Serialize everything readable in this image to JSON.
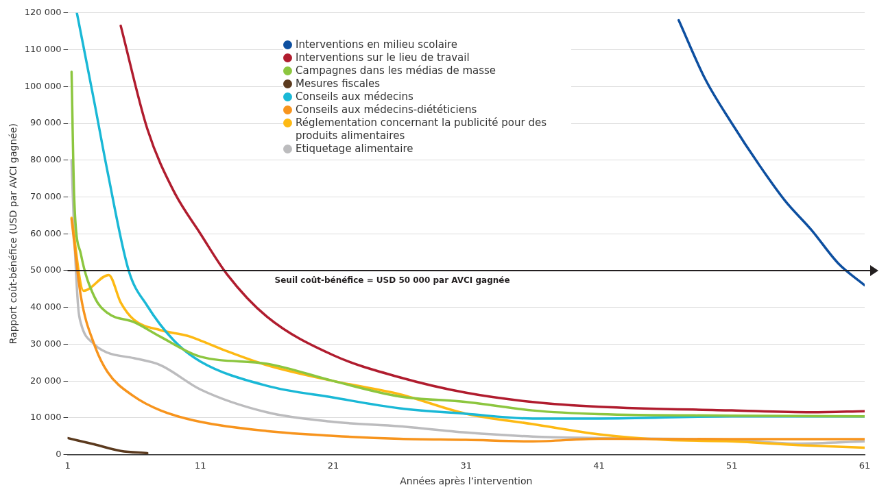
{
  "chart_data": {
    "type": "line",
    "xlabel": "Années après l’intervention",
    "ylabel": "Rapport coût-bénéfice (USD par AVCI gagnée)",
    "xlim": [
      1,
      61
    ],
    "xticks": [
      1,
      11,
      21,
      31,
      41,
      51,
      61
    ],
    "ylim": [
      0,
      120000
    ],
    "yticks": [
      0,
      {
        "value": 10000,
        "label": "10 000"
      },
      {
        "value": 20000,
        "label": "20 000"
      },
      {
        "value": 30000,
        "label": "30 000"
      },
      {
        "value": 40000,
        "label": "40 000"
      },
      {
        "value": 50000,
        "label": "50 000"
      },
      {
        "value": 60000,
        "label": "60 000"
      },
      {
        "value": 70000,
        "label": "70 000"
      },
      {
        "value": 80000,
        "label": "80 000"
      },
      {
        "value": 90000,
        "label": "90 000"
      },
      {
        "value": 100000,
        "label": "100 000"
      },
      {
        "value": 110000,
        "label": "110 000"
      },
      {
        "value": 120000,
        "label": "120 000"
      }
    ],
    "grid": "y",
    "legend": "top",
    "marker": "none",
    "line_style": "solid",
    "ref_lines": [
      {
        "axis": "y",
        "value": 50000,
        "label": "Seuil coût-bénéfice = USD 50 000 par AVCI gagnée",
        "color": "#231f20"
      }
    ],
    "series": [
      {
        "name": "Interventions en milieu scolaire",
        "color": "#0d4fa0",
        "x": [
          47,
          49,
          51,
          53,
          55,
          57,
          59,
          61
        ],
        "values": [
          118000,
          102000,
          90000,
          79000,
          69000,
          61000,
          52000,
          46000
        ]
      },
      {
        "name": "Interventions sur le lieu de travail",
        "color": "#b01c2e",
        "x": [
          5,
          7,
          9,
          11,
          13,
          16,
          21,
          26,
          31,
          36,
          41,
          51,
          57,
          61
        ],
        "values": [
          116500,
          88500,
          71500,
          60000,
          49000,
          37500,
          27000,
          21000,
          16800,
          14300,
          13000,
          12000,
          11500,
          11800
        ]
      },
      {
        "name": "Campagnes dans les médias de masse",
        "color": "#8cc63f",
        "x": [
          1.3,
          1.5,
          2,
          3,
          4,
          6,
          8,
          11,
          16,
          21,
          26,
          31,
          36,
          41,
          51,
          61
        ],
        "values": [
          104000,
          69600,
          54500,
          43000,
          38500,
          36000,
          32000,
          26600,
          24700,
          20000,
          15800,
          14300,
          12000,
          11000,
          10600,
          10400
        ]
      },
      {
        "name": "Mesures fiscales",
        "color": "#5b3a1e",
        "x": [
          1,
          3,
          5,
          7
        ],
        "values": [
          4500,
          2800,
          1000,
          400
        ]
      },
      {
        "name": "Conseils aux médecins",
        "color": "#1ab8d6",
        "x": [
          1.7,
          3,
          4,
          5.6,
          7,
          9,
          11,
          16,
          21,
          26,
          31,
          36,
          41,
          51,
          61
        ],
        "values": [
          120000,
          96000,
          77000,
          50000,
          40400,
          31000,
          25300,
          18700,
          15500,
          12600,
          11100,
          9800,
          9800,
          10400,
          10400
        ]
      },
      {
        "name": "Conseils aux médecins-diététiciens",
        "color": "#f7941d",
        "x": [
          1.3,
          2,
          3,
          4,
          6,
          8,
          11,
          16,
          21,
          26,
          31,
          36,
          41,
          51,
          61
        ],
        "values": [
          64000,
          43000,
          30000,
          22500,
          15800,
          12000,
          8900,
          6400,
          5100,
          4300,
          4000,
          3600,
          4300,
          4200,
          4200
        ]
      },
      {
        "name": "Réglementation concernant la publicité pour des produits alimentaires",
        "color": "#fdb913",
        "x": [
          1.3,
          2.2,
          4.1,
          5,
          6,
          8,
          10,
          11,
          13,
          16,
          21,
          26,
          31,
          36,
          41,
          46,
          51,
          56,
          61
        ],
        "values": [
          64300,
          44500,
          48800,
          41300,
          36600,
          33800,
          32300,
          31000,
          28100,
          24300,
          20000,
          16400,
          11100,
          8300,
          5500,
          4000,
          3600,
          2600,
          1900
        ]
      },
      {
        "name": "Etiquetage alimentaire",
        "color": "#bcbcbe",
        "x": [
          1.3,
          1.5,
          1.8,
          2,
          3,
          4,
          6,
          8,
          11,
          16,
          21,
          26,
          31,
          36,
          41,
          51,
          56,
          61
        ],
        "values": [
          80000,
          60000,
          40000,
          35700,
          30000,
          27700,
          26200,
          24300,
          17700,
          11500,
          8900,
          7700,
          6000,
          4900,
          4500,
          4000,
          3000,
          3600
        ]
      }
    ]
  }
}
